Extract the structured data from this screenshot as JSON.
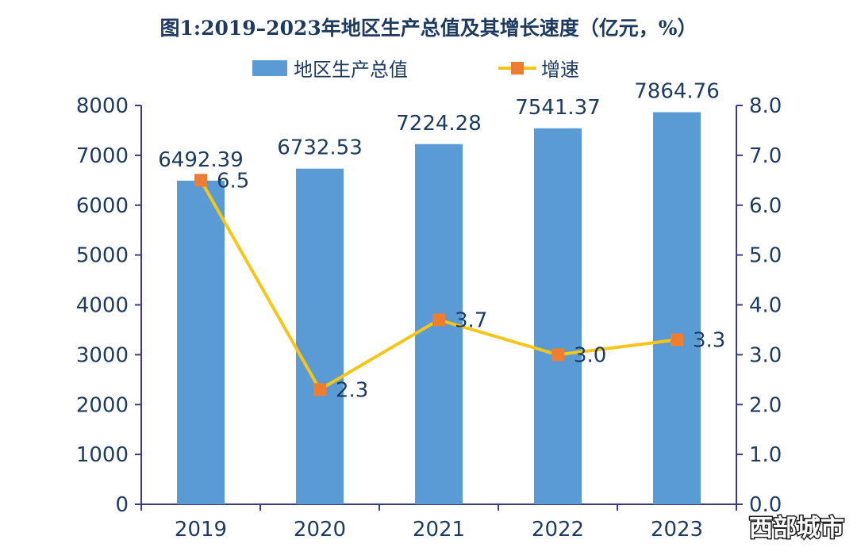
{
  "chart_data": {
    "type": "bar",
    "title": "图1:2019–2023年地区生产总值及其增长速度（亿元，%）",
    "categories": [
      "2019",
      "2020",
      "2021",
      "2022",
      "2023"
    ],
    "series": [
      {
        "name": "地区生产总值",
        "type": "bar",
        "axis": "left",
        "values": [
          6492.39,
          6732.53,
          7224.28,
          7541.37,
          7864.76
        ],
        "labels": [
          "6492.39",
          "6732.53",
          "7224.28",
          "7541.37",
          "7864.76"
        ],
        "color": "#5b9bd5"
      },
      {
        "name": "增速",
        "type": "line",
        "axis": "right",
        "values": [
          6.5,
          2.3,
          3.7,
          3.0,
          3.3
        ],
        "labels": [
          "6.5",
          "2.3",
          "3.7",
          "3.0",
          "3.3"
        ],
        "line_color": "#f5c518",
        "marker_color": "#ed7d31"
      }
    ],
    "y_left": {
      "range": [
        0,
        8000
      ],
      "ticks": [
        "0",
        "1000",
        "2000",
        "3000",
        "4000",
        "5000",
        "6000",
        "7000",
        "8000"
      ]
    },
    "y_right": {
      "range": [
        0,
        8
      ],
      "ticks": [
        "0.0",
        "1.0",
        "2.0",
        "3.0",
        "4.0",
        "5.0",
        "6.0",
        "7.0",
        "8.0"
      ]
    },
    "grid": false,
    "legend_position": "top"
  },
  "watermark": "西部城市"
}
